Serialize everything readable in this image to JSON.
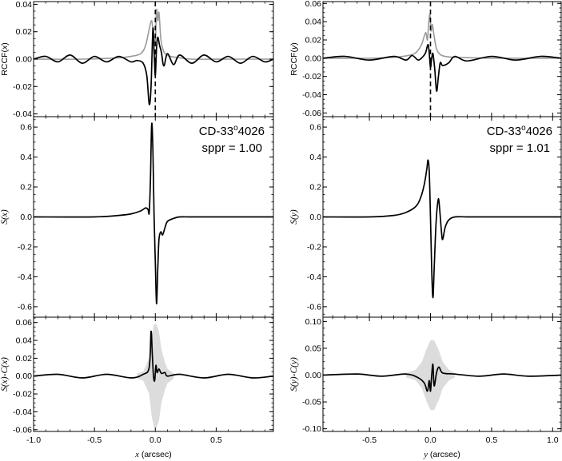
{
  "colors": {
    "curve": "#000000",
    "gray_curve": "#9a9a9a",
    "band": "#dcdcdc"
  },
  "chart_data": [
    {
      "type": "line",
      "panel": "left-top",
      "ylabel_parts": [
        "RCCF(",
        "x",
        ")"
      ],
      "xlim": [
        -1.0,
        0.97
      ],
      "ylim": [
        -0.042,
        0.042
      ],
      "yticks": [
        -0.04,
        -0.02,
        0.0,
        0.02,
        0.04
      ],
      "ytick_labels": [
        "-0.04",
        "-0.02",
        "0.00",
        "0.02",
        "0.04"
      ],
      "dashed_vline_x": 0.0,
      "series": [
        {
          "role": "black",
          "x": [
            -1.0,
            -0.9,
            -0.8,
            -0.7,
            -0.6,
            -0.5,
            -0.4,
            -0.3,
            -0.2,
            -0.15,
            -0.1,
            -0.07,
            -0.05,
            -0.035,
            -0.02,
            -0.01,
            0.0,
            0.01,
            0.02,
            0.035,
            0.05,
            0.07,
            0.1,
            0.15,
            0.2,
            0.3,
            0.4,
            0.5,
            0.6,
            0.7,
            0.8,
            0.9,
            0.97
          ],
          "y": [
            0.0,
            0.002,
            -0.002,
            0.003,
            -0.003,
            0.002,
            -0.002,
            0.002,
            -0.002,
            -0.001,
            -0.003,
            -0.012,
            -0.033,
            -0.02,
            0.022,
            0.005,
            -0.012,
            0.008,
            0.016,
            0.01,
            0.005,
            -0.005,
            0.004,
            -0.004,
            0.003,
            -0.003,
            0.003,
            -0.002,
            0.002,
            -0.003,
            0.002,
            -0.002,
            0.0
          ]
        },
        {
          "role": "gray",
          "x": [
            -1.0,
            -0.6,
            -0.3,
            -0.2,
            -0.12,
            -0.08,
            -0.05,
            -0.03,
            -0.015,
            0.0,
            0.01,
            0.02,
            0.03,
            0.045,
            0.06,
            0.08,
            0.12,
            0.2,
            0.3,
            0.6,
            0.97
          ],
          "y": [
            0.0,
            0.0,
            0.001,
            0.002,
            0.004,
            0.01,
            0.022,
            0.028,
            0.018,
            0.012,
            0.036,
            0.028,
            0.034,
            0.015,
            0.008,
            0.004,
            0.002,
            0.001,
            0.0,
            0.0,
            0.0
          ]
        }
      ]
    },
    {
      "type": "line",
      "panel": "left-mid",
      "ylabel_parts": [
        "S(",
        "x",
        ")"
      ],
      "xlim": [
        -1.0,
        0.97
      ],
      "ylim": [
        -0.67,
        0.67
      ],
      "yticks": [
        -0.6,
        -0.4,
        -0.2,
        0.0,
        0.2,
        0.4,
        0.6
      ],
      "ytick_labels": [
        "-0.6",
        "-0.4",
        "-0.2",
        "0.0",
        "0.2",
        "0.4",
        "0.6"
      ],
      "annotation": {
        "star": "CD-33",
        "degree": "o",
        "rest": "4026",
        "line2": "sppr = 1.00"
      },
      "series": [
        {
          "role": "black",
          "x": [
            -1.0,
            -0.5,
            -0.3,
            -0.2,
            -0.12,
            -0.08,
            -0.06,
            -0.05,
            -0.04,
            -0.03,
            -0.02,
            -0.01,
            0.0,
            0.01,
            0.02,
            0.03,
            0.045,
            0.06,
            0.08,
            0.1,
            0.15,
            0.2,
            0.3,
            0.5,
            0.97
          ],
          "y": [
            0.0,
            0.0,
            0.01,
            0.02,
            0.04,
            0.06,
            0.05,
            0.03,
            0.25,
            0.62,
            0.45,
            0.0,
            -0.3,
            -0.58,
            -0.35,
            -0.15,
            -0.1,
            -0.12,
            -0.07,
            -0.03,
            -0.01,
            0.0,
            0.0,
            0.0,
            0.0
          ]
        }
      ]
    },
    {
      "type": "line",
      "panel": "left-bot",
      "ylabel_parts": [
        "S(",
        "x",
        ")-C(",
        "x",
        ")"
      ],
      "xlabel_parts": [
        "x",
        " (arcsec)"
      ],
      "xlim": [
        -1.0,
        0.97
      ],
      "ylim": [
        -0.062,
        0.066
      ],
      "yticks": [
        -0.06,
        -0.04,
        -0.02,
        0.0,
        0.02,
        0.04,
        0.06
      ],
      "ytick_labels": [
        "-0.06",
        "-0.04",
        "-0.02",
        "0.00",
        "0.02",
        "0.04",
        "0.06"
      ],
      "xticks": [
        -1.0,
        -0.5,
        0.0,
        0.5
      ],
      "xtick_labels": [
        "-1.0",
        "-0.5",
        "0.0",
        "0.5"
      ],
      "band": {
        "x": [
          -0.15,
          -0.1,
          -0.05,
          -0.03,
          -0.01,
          0.01,
          0.03,
          0.05,
          0.08,
          0.1,
          0.15
        ],
        "half_width": [
          0.003,
          0.005,
          0.02,
          0.045,
          0.058,
          0.058,
          0.05,
          0.03,
          0.015,
          0.008,
          0.003
        ]
      },
      "series": [
        {
          "role": "black",
          "x": [
            -1.0,
            -0.8,
            -0.6,
            -0.4,
            -0.2,
            -0.1,
            -0.05,
            -0.035,
            -0.025,
            -0.015,
            -0.005,
            0.005,
            0.015,
            0.03,
            0.05,
            0.08,
            0.1,
            0.2,
            0.4,
            0.6,
            0.8,
            0.97
          ],
          "y": [
            0.0,
            0.002,
            -0.002,
            0.002,
            -0.002,
            0.002,
            0.01,
            0.05,
            0.025,
            0.0,
            -0.005,
            0.012,
            0.004,
            0.008,
            0.003,
            0.004,
            0.0,
            0.002,
            -0.002,
            0.002,
            -0.002,
            0.0
          ]
        }
      ]
    },
    {
      "type": "line",
      "panel": "right-top",
      "ylabel_parts": [
        "RCCF(",
        "y",
        ")"
      ],
      "xlim": [
        -0.88,
        1.07
      ],
      "ylim": [
        -0.064,
        0.062
      ],
      "yticks": [
        -0.06,
        -0.04,
        -0.02,
        0.0,
        0.02,
        0.04,
        0.06
      ],
      "ytick_labels": [
        "-0.06",
        "-0.04",
        "-0.02",
        "0.00",
        "0.02",
        "0.04",
        "0.06"
      ],
      "dashed_vline_x": 0.0,
      "series": [
        {
          "role": "black",
          "x": [
            -0.88,
            -0.7,
            -0.5,
            -0.3,
            -0.2,
            -0.15,
            -0.1,
            -0.06,
            -0.04,
            -0.02,
            -0.01,
            0.0,
            0.01,
            0.02,
            0.035,
            0.05,
            0.065,
            0.08,
            0.1,
            0.15,
            0.2,
            0.3,
            0.5,
            0.7,
            0.9,
            1.07
          ],
          "y": [
            0.0,
            0.002,
            -0.002,
            0.002,
            -0.002,
            0.003,
            -0.002,
            0.002,
            0.006,
            0.015,
            0.005,
            -0.01,
            0.0,
            0.005,
            -0.012,
            -0.036,
            -0.02,
            -0.005,
            -0.008,
            -0.005,
            0.002,
            -0.003,
            0.002,
            -0.002,
            0.002,
            0.0
          ]
        },
        {
          "role": "gray",
          "x": [
            -0.88,
            -0.5,
            -0.3,
            -0.15,
            -0.1,
            -0.07,
            -0.04,
            -0.025,
            -0.015,
            -0.005,
            0.005,
            0.015,
            0.03,
            0.05,
            0.08,
            0.12,
            0.2,
            0.5,
            1.07
          ],
          "y": [
            0.0,
            0.0,
            0.001,
            0.004,
            0.009,
            0.016,
            0.028,
            0.02,
            0.038,
            0.048,
            0.03,
            0.037,
            0.024,
            0.01,
            0.004,
            0.002,
            0.001,
            0.0,
            0.0
          ]
        }
      ]
    },
    {
      "type": "line",
      "panel": "right-mid",
      "ylabel_parts": [
        "S(",
        "y",
        ")"
      ],
      "xlim": [
        -0.88,
        1.07
      ],
      "ylim": [
        -0.67,
        0.67
      ],
      "yticks": [
        -0.6,
        -0.4,
        -0.2,
        0.0,
        0.2,
        0.4,
        0.6
      ],
      "ytick_labels": [
        "-0.6",
        "-0.4",
        "-0.2",
        "0.0",
        "0.2",
        "0.4",
        "0.6"
      ],
      "annotation": {
        "star": "CD-33",
        "degree": "o",
        "rest": "4026",
        "line2": "sppr = 1.01"
      },
      "series": [
        {
          "role": "black",
          "x": [
            -0.88,
            -0.5,
            -0.3,
            -0.2,
            -0.12,
            -0.08,
            -0.05,
            -0.03,
            -0.02,
            -0.01,
            0.0,
            0.01,
            0.02,
            0.03,
            0.045,
            0.06,
            0.07,
            0.09,
            0.1,
            0.12,
            0.15,
            0.2,
            0.3,
            0.5,
            1.07
          ],
          "y": [
            0.0,
            0.0,
            0.01,
            0.03,
            0.07,
            0.13,
            0.22,
            0.32,
            0.38,
            0.3,
            0.0,
            -0.35,
            -0.54,
            -0.35,
            -0.05,
            0.1,
            0.1,
            -0.1,
            -0.15,
            -0.07,
            -0.02,
            0.0,
            0.0,
            0.0,
            0.0
          ]
        }
      ]
    },
    {
      "type": "line",
      "panel": "right-bot",
      "ylabel_parts": [
        "S(",
        "y",
        ")-C(",
        "y",
        ")"
      ],
      "xlabel_parts": [
        "y",
        " (arcsec)"
      ],
      "xlim": [
        -0.88,
        1.07
      ],
      "ylim": [
        -0.105,
        0.108
      ],
      "yticks": [
        -0.1,
        -0.05,
        0.0,
        0.05,
        0.1
      ],
      "ytick_labels": [
        "-0.10",
        "-0.05",
        "0.00",
        "0.05",
        "0.10"
      ],
      "xticks": [
        -0.5,
        0.0,
        0.5,
        1.0
      ],
      "xtick_labels": [
        "-0.5",
        "0.0",
        "0.5",
        "1.0"
      ],
      "band": {
        "x": [
          -0.2,
          -0.12,
          -0.07,
          -0.03,
          0.0,
          0.03,
          0.07,
          0.1,
          0.15,
          0.2
        ],
        "half_width": [
          0.004,
          0.01,
          0.025,
          0.05,
          0.065,
          0.065,
          0.045,
          0.025,
          0.01,
          0.004
        ]
      },
      "series": [
        {
          "role": "black",
          "x": [
            -0.88,
            -0.6,
            -0.4,
            -0.2,
            -0.1,
            -0.05,
            -0.025,
            -0.01,
            0.0,
            0.01,
            0.02,
            0.03,
            0.05,
            0.07,
            0.1,
            0.2,
            0.4,
            0.6,
            0.8,
            1.07
          ],
          "y": [
            0.0,
            0.002,
            -0.002,
            0.002,
            -0.005,
            -0.015,
            -0.03,
            -0.01,
            -0.03,
            0.0,
            0.02,
            -0.02,
            0.005,
            0.015,
            0.004,
            0.002,
            -0.002,
            0.002,
            -0.002,
            0.0
          ]
        }
      ]
    }
  ]
}
